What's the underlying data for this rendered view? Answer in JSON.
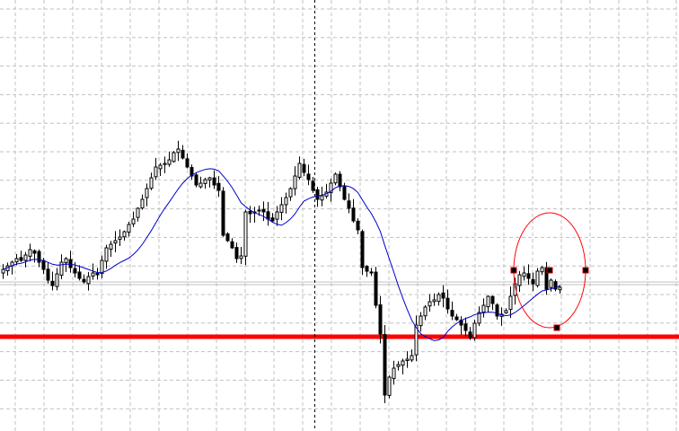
{
  "chart_data": {
    "type": "candlestick",
    "title": "",
    "xlabel": "",
    "ylabel": "",
    "ylim": [
      0,
      480
    ],
    "grid": true,
    "colors": {
      "background": "#ffffff",
      "grid": "#c0c0c0",
      "bull_body": "#ffffff",
      "bear_body": "#000000",
      "candle_outline": "#000000",
      "moving_average": "#0000cc",
      "support_line": "#ff0000",
      "bid_line": "#c0c0c0",
      "ellipse": "#ff0000"
    },
    "closes": [
      180,
      184,
      188,
      192,
      190,
      196,
      202,
      198,
      188,
      180,
      168,
      162,
      175,
      188,
      192,
      182,
      176,
      170,
      166,
      172,
      176,
      174,
      190,
      204,
      208,
      212,
      216,
      222,
      230,
      236,
      248,
      258,
      270,
      282,
      294,
      296,
      298,
      302,
      310,
      314,
      304,
      294,
      284,
      274,
      276,
      280,
      282,
      274,
      268,
      218,
      212,
      204,
      192,
      195,
      244,
      242,
      244,
      246,
      244,
      236,
      234,
      244,
      252,
      260,
      270,
      284,
      298,
      288,
      280,
      268,
      258,
      262,
      266,
      276,
      286,
      272,
      258,
      248,
      234,
      224,
      182,
      178,
      176,
      140,
      108,
      40,
      60,
      70,
      74,
      78,
      80,
      84,
      118,
      128,
      138,
      144,
      146,
      152,
      148,
      136,
      128,
      124,
      118,
      112,
      104,
      120,
      132,
      140,
      150,
      142,
      128,
      130,
      134,
      150,
      164,
      174,
      176,
      170,
      164,
      178,
      182,
      158,
      168,
      158,
      160
    ],
    "moving_average_period": 14,
    "horizontal_lines": [
      {
        "name": "support",
        "price": 105
      },
      {
        "name": "bid",
        "price": 165
      }
    ],
    "vertical_line_bar": 70,
    "ellipse": {
      "center_bar": 122,
      "center_price": 179
    }
  }
}
